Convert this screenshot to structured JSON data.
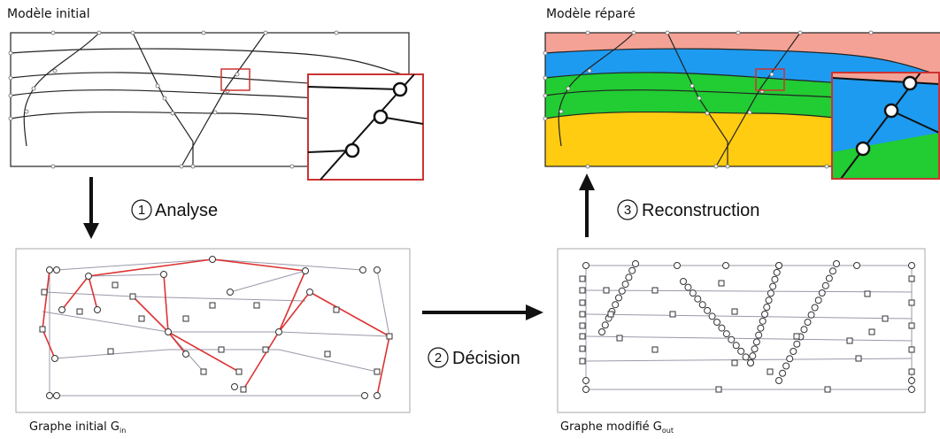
{
  "panels": {
    "initial_model": {
      "title": "Modèle initial"
    },
    "repaired_model": {
      "title": "Modèle réparé"
    },
    "initial_graph": {
      "caption": "Graphe initial G",
      "subscript": "in"
    },
    "modified_graph": {
      "caption": "Graphe modifié G",
      "subscript": "out"
    }
  },
  "steps": [
    {
      "number": "1",
      "label": "Analyse"
    },
    {
      "number": "2",
      "label": "Décision"
    },
    {
      "number": "3",
      "label": "Reconstruction"
    }
  ]
}
